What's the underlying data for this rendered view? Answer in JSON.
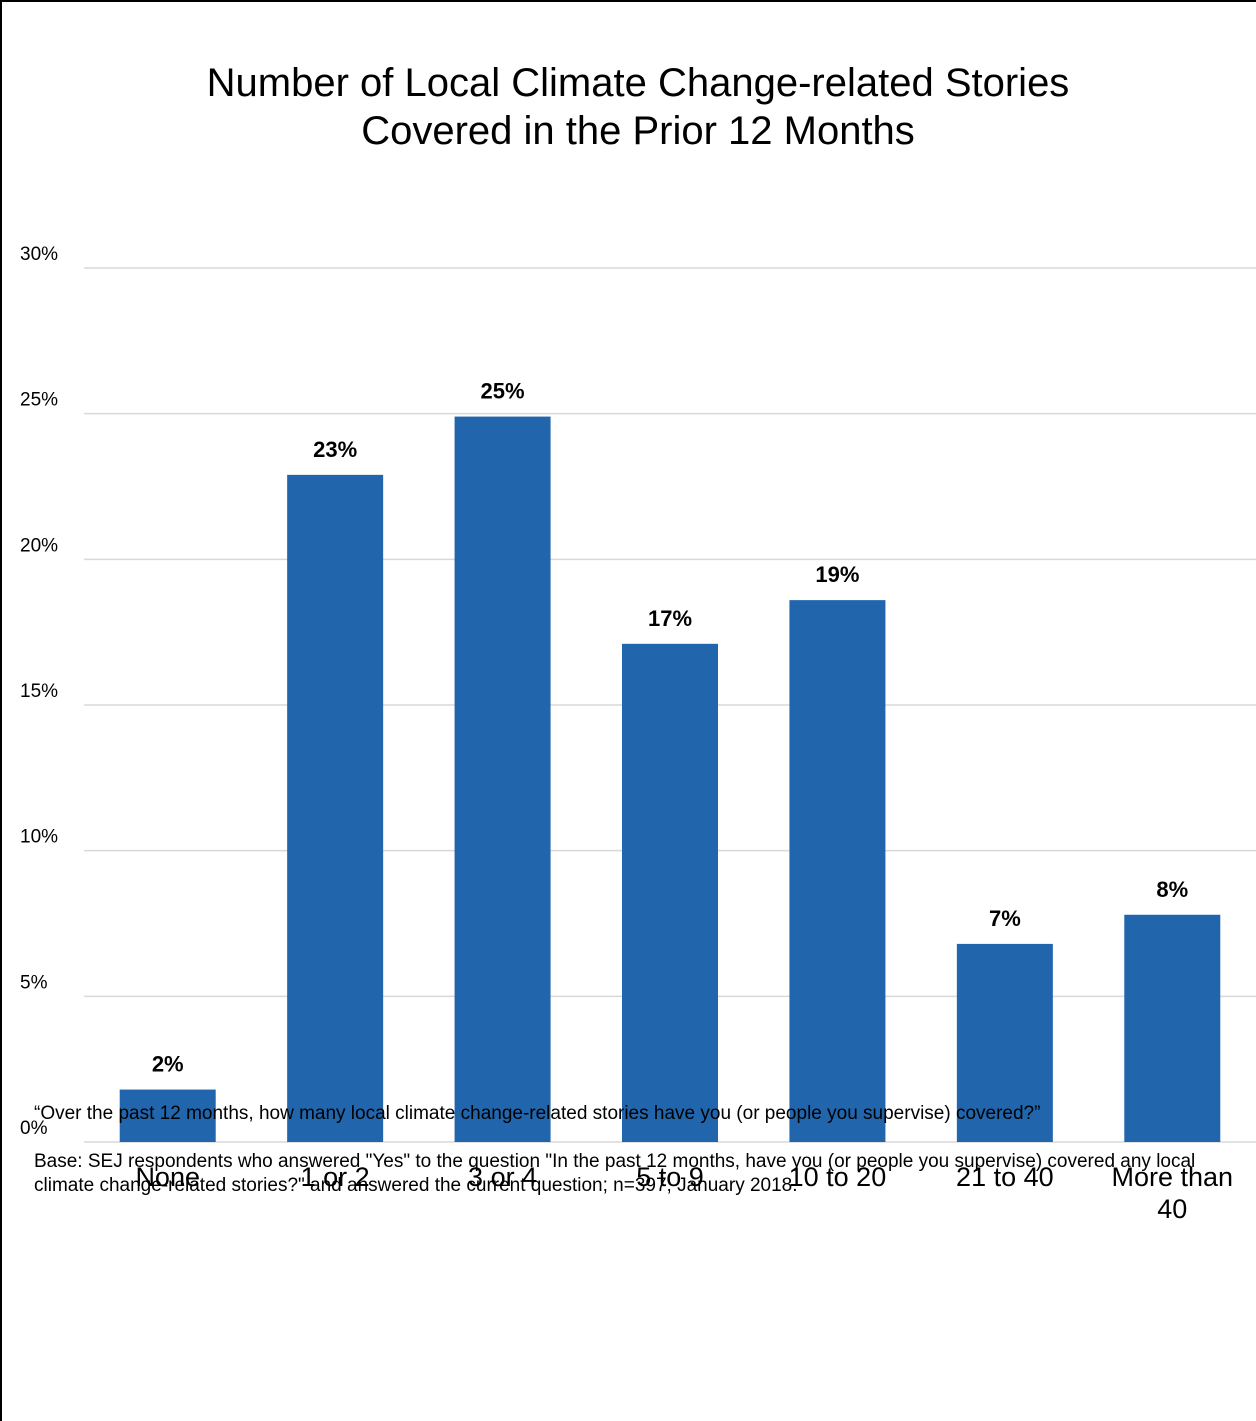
{
  "chart_data": {
    "type": "bar",
    "title": "Number of Local Climate Change-related Stories Covered in the Prior 12 Months",
    "title_lines": [
      "Number of Local Climate Change-related Stories",
      "Covered in the Prior 12 Months"
    ],
    "categories": [
      "None",
      "1 or 2",
      "3 or 4",
      "5 to 9",
      "10 to 20",
      "21 to 40",
      "More than 40"
    ],
    "category_lines": [
      [
        "None"
      ],
      [
        "1 or 2"
      ],
      [
        "3 or 4"
      ],
      [
        "5 to 9"
      ],
      [
        "10 to 20"
      ],
      [
        "21 to 40"
      ],
      [
        "More than",
        "40"
      ]
    ],
    "values": [
      1.8,
      22.9,
      24.9,
      17.1,
      18.6,
      6.8,
      7.8
    ],
    "data_labels": [
      "2%",
      "23%",
      "25%",
      "17%",
      "19%",
      "7%",
      "8%"
    ],
    "ylim": [
      0,
      30
    ],
    "yticks": [
      0,
      5,
      10,
      15,
      20,
      25,
      30
    ],
    "ytick_labels": [
      "0%",
      "5%",
      "10%",
      "15%",
      "20%",
      "25%",
      "30%"
    ],
    "xlabel": "",
    "ylabel": "",
    "grid": true,
    "legend": "none",
    "bar_color": "#2166ac",
    "grid_color": "#d9d9d9"
  },
  "footnote": {
    "question": "“Over the past 12 months, how many local climate change-related stories have you (or people you supervise) covered?”",
    "base": "Base: SEJ respondents who answered \"Yes\" to the question \"In the past 12 months, have you (or people you supervise) covered any local climate change-related stories?\" and answered the current question; n=397; January 2018."
  }
}
